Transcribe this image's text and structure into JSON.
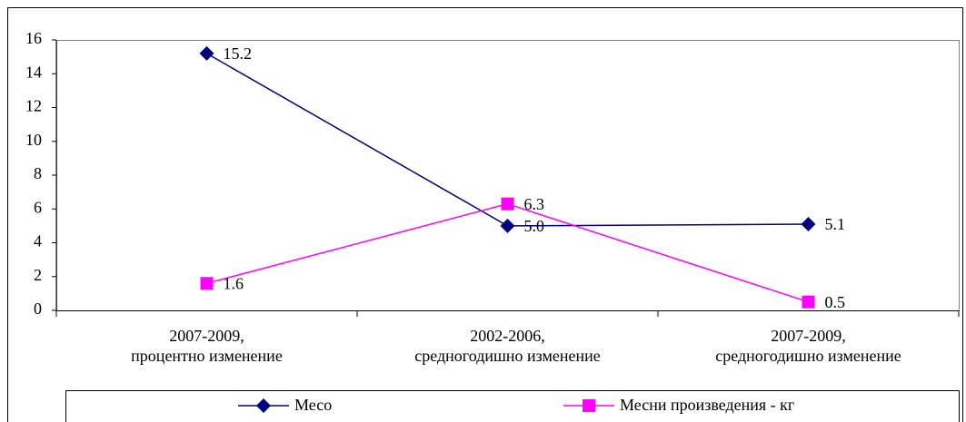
{
  "chart_data": {
    "type": "line",
    "categories": [
      "2007-2009,\nпроцентно изменение",
      "2002-2006,\nсредногодишно изменение",
      "2007-2009,\nсредногодишно изменение"
    ],
    "series": [
      {
        "name": "Месо",
        "color": "#000080",
        "marker": "diamond",
        "values": [
          15.2,
          5.0,
          5.1
        ],
        "value_labels": [
          "15.2",
          "5.0",
          "5.1"
        ]
      },
      {
        "name": "Месни произведения  - кг",
        "color": "#ff00ff",
        "marker": "square",
        "values": [
          1.6,
          6.3,
          0.5
        ],
        "value_labels": [
          "1.6",
          "6.3",
          "0.5"
        ]
      }
    ],
    "ylim": [
      0,
      16
    ],
    "yticks": [
      0,
      2,
      4,
      6,
      8,
      10,
      12,
      14,
      16
    ],
    "grid": false,
    "legend": "bottom"
  }
}
